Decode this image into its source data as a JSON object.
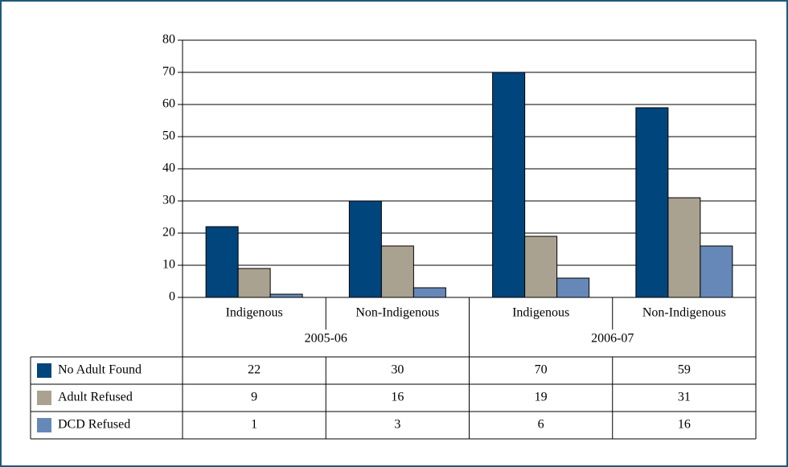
{
  "chart_data": {
    "type": "bar",
    "categories": [
      "Indigenous",
      "Non-Indigenous",
      "Indigenous",
      "Non-Indigenous"
    ],
    "groups": [
      "2005-06",
      "2006-07"
    ],
    "series": [
      {
        "name": "No Adult Found",
        "color": "#00457c",
        "values": [
          22,
          30,
          70,
          59
        ]
      },
      {
        "name": "Adult Refused",
        "color": "#aaa291",
        "values": [
          9,
          16,
          19,
          31
        ]
      },
      {
        "name": "DCD Refused",
        "color": "#6688b8",
        "values": [
          1,
          3,
          6,
          16
        ]
      }
    ],
    "ylim": [
      0,
      80
    ],
    "yticks": [
      0,
      10,
      20,
      30,
      40,
      50,
      60,
      70,
      80
    ],
    "grid": true
  }
}
